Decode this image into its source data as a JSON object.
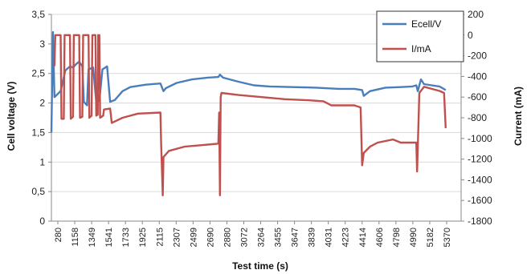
{
  "chart_data": {
    "type": "line",
    "xlabel": "Test time (s)",
    "ylabel": "Cell voltage (V)",
    "y2label": "Current (mA)",
    "x_tick_labels": [
      "280",
      "1158",
      "1349",
      "1541",
      "1733",
      "1925",
      "2115",
      "2307",
      "2499",
      "2690",
      "2880",
      "3072",
      "3264",
      "3455",
      "3647",
      "3839",
      "4031",
      "4223",
      "4414",
      "4606",
      "4798",
      "4990",
      "5182",
      "5370"
    ],
    "xlim": [
      280,
      5580
    ],
    "y_ticks": [
      "0",
      "0,5",
      "1",
      "1,5",
      "2",
      "2,5",
      "3",
      "3,5"
    ],
    "ylim": [
      0,
      3.5
    ],
    "y2_ticks": [
      "200",
      "0",
      "-200",
      "-400",
      "-600",
      "-800",
      "-1000",
      "-1200",
      "-1400",
      "-1600",
      "-1800"
    ],
    "y2lim": [
      -1800,
      200
    ],
    "grid": true,
    "legend_position": "top-right",
    "series": [
      {
        "name": "Ecell/V",
        "axis": "left",
        "color": "#4a7ebb",
        "points": [
          [
            280,
            1.5
          ],
          [
            300,
            3.2
          ],
          [
            320,
            2.1
          ],
          [
            400,
            2.2
          ],
          [
            460,
            2.55
          ],
          [
            520,
            2.62
          ],
          [
            560,
            2.6
          ],
          [
            600,
            2.66
          ],
          [
            640,
            2.7
          ],
          [
            680,
            2.62
          ],
          [
            700,
            2.02
          ],
          [
            740,
            1.96
          ],
          [
            760,
            2.57
          ],
          [
            820,
            2.6
          ],
          [
            860,
            2.02
          ],
          [
            900,
            2.04
          ],
          [
            940,
            2.57
          ],
          [
            1000,
            2.62
          ],
          [
            1040,
            2.02
          ],
          [
            1100,
            2.05
          ],
          [
            1200,
            2.2
          ],
          [
            1300,
            2.27
          ],
          [
            1500,
            2.31
          ],
          [
            1690,
            2.33
          ],
          [
            1730,
            2.2
          ],
          [
            1760,
            2.25
          ],
          [
            1900,
            2.34
          ],
          [
            2100,
            2.4
          ],
          [
            2300,
            2.43
          ],
          [
            2440,
            2.44
          ],
          [
            2460,
            2.48
          ],
          [
            2500,
            2.43
          ],
          [
            2700,
            2.36
          ],
          [
            2900,
            2.3
          ],
          [
            3100,
            2.28
          ],
          [
            3400,
            2.27
          ],
          [
            3700,
            2.26
          ],
          [
            4000,
            2.24
          ],
          [
            4200,
            2.24
          ],
          [
            4300,
            2.22
          ],
          [
            4320,
            2.12
          ],
          [
            4400,
            2.2
          ],
          [
            4600,
            2.26
          ],
          [
            4800,
            2.27
          ],
          [
            4950,
            2.28
          ],
          [
            5000,
            2.3
          ],
          [
            5020,
            2.2
          ],
          [
            5060,
            2.4
          ],
          [
            5100,
            2.32
          ],
          [
            5200,
            2.3
          ],
          [
            5300,
            2.28
          ],
          [
            5380,
            2.22
          ]
        ]
      },
      {
        "name": "I/mA",
        "axis": "right",
        "color": "#c0504d",
        "points": [
          [
            320,
            -300
          ],
          [
            330,
            0
          ],
          [
            400,
            0
          ],
          [
            410,
            -810
          ],
          [
            440,
            -810
          ],
          [
            450,
            0
          ],
          [
            520,
            0
          ],
          [
            530,
            -810
          ],
          [
            560,
            -790
          ],
          [
            570,
            0
          ],
          [
            640,
            0
          ],
          [
            650,
            -800
          ],
          [
            680,
            -790
          ],
          [
            690,
            0
          ],
          [
            760,
            0
          ],
          [
            770,
            -800
          ],
          [
            800,
            -780
          ],
          [
            810,
            0
          ],
          [
            850,
            0
          ],
          [
            860,
            -780
          ],
          [
            880,
            -770
          ],
          [
            885,
            0
          ],
          [
            900,
            0
          ],
          [
            910,
            -800
          ],
          [
            950,
            -780
          ],
          [
            960,
            -720
          ],
          [
            1040,
            -710
          ],
          [
            1060,
            -850
          ],
          [
            1200,
            -800
          ],
          [
            1400,
            -760
          ],
          [
            1690,
            -750
          ],
          [
            1700,
            -1050
          ],
          [
            1720,
            -1550
          ],
          [
            1730,
            -1180
          ],
          [
            1800,
            -1120
          ],
          [
            2000,
            -1080
          ],
          [
            2300,
            -1060
          ],
          [
            2440,
            -1050
          ],
          [
            2450,
            -750
          ],
          [
            2460,
            -1550
          ],
          [
            2470,
            -600
          ],
          [
            2480,
            -560
          ],
          [
            2700,
            -580
          ],
          [
            3000,
            -600
          ],
          [
            3300,
            -620
          ],
          [
            3600,
            -630
          ],
          [
            3800,
            -640
          ],
          [
            3900,
            -680
          ],
          [
            4200,
            -680
          ],
          [
            4280,
            -700
          ],
          [
            4300,
            -1260
          ],
          [
            4320,
            -1140
          ],
          [
            4400,
            -1080
          ],
          [
            4500,
            -1040
          ],
          [
            4700,
            -1010
          ],
          [
            4800,
            -1040
          ],
          [
            5000,
            -1040
          ],
          [
            5010,
            -1320
          ],
          [
            5040,
            -560
          ],
          [
            5100,
            -500
          ],
          [
            5200,
            -520
          ],
          [
            5300,
            -540
          ],
          [
            5360,
            -560
          ],
          [
            5380,
            -900
          ]
        ]
      }
    ]
  }
}
